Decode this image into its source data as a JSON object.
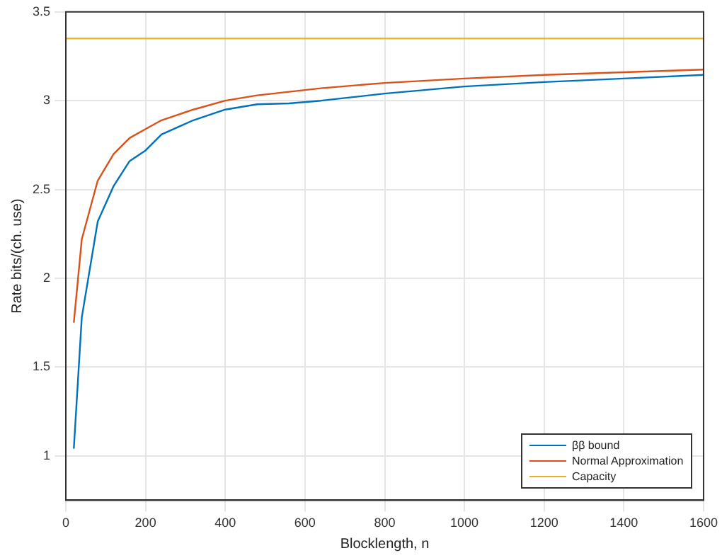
{
  "chart_data": {
    "type": "line",
    "xlabel": "Blocklength, n",
    "ylabel": "Rate bits/(ch. use)",
    "xlim": [
      0,
      1600
    ],
    "xticks": [
      0,
      200,
      400,
      600,
      800,
      1000,
      1200,
      1400,
      1600
    ],
    "ylim": [
      0.75,
      3.5
    ],
    "yticks": [
      1,
      1.5,
      2,
      2.5,
      3,
      3.5
    ],
    "grid": true,
    "legend": "bottom right",
    "marker": "none",
    "line_style": "solid",
    "series": [
      {
        "name": "ββ bound",
        "color": "#0072bd",
        "x": [
          20,
          40,
          80,
          120,
          160,
          200,
          240,
          320,
          400,
          480,
          560,
          640,
          800,
          1000,
          1200,
          1400,
          1600
        ],
        "values": [
          1.04,
          1.78,
          2.32,
          2.52,
          2.66,
          2.72,
          2.81,
          2.89,
          2.95,
          2.98,
          2.985,
          3.0,
          3.04,
          3.08,
          3.105,
          3.125,
          3.145
        ]
      },
      {
        "name": "Normal Approximation",
        "color": "#d95319",
        "x": [
          20,
          40,
          80,
          120,
          160,
          200,
          240,
          320,
          400,
          480,
          560,
          640,
          800,
          1000,
          1200,
          1400,
          1600
        ],
        "values": [
          1.75,
          2.22,
          2.55,
          2.7,
          2.79,
          2.84,
          2.89,
          2.95,
          3.0,
          3.03,
          3.05,
          3.07,
          3.1,
          3.125,
          3.145,
          3.16,
          3.175
        ]
      },
      {
        "name": "Capacity",
        "color": "#edb120",
        "x": [
          0,
          1600
        ],
        "values": [
          3.35,
          3.35
        ]
      }
    ]
  }
}
